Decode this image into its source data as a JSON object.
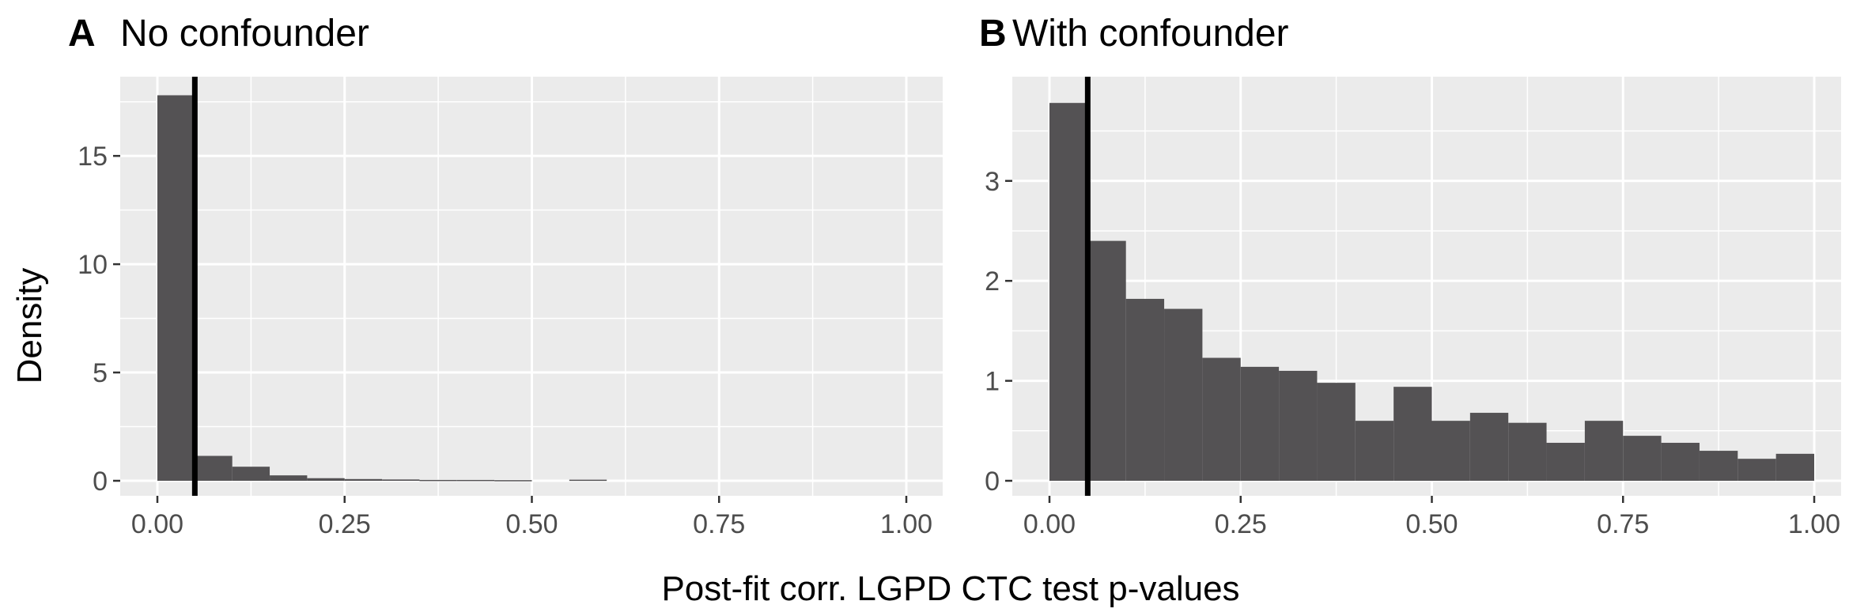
{
  "figure": {
    "ylabel": "Density",
    "xlabel": "Post-fit corr. LGPD CTC test p-values"
  },
  "chart_data": [
    {
      "type": "bar",
      "panel_letter": "A",
      "title": "No confounder",
      "xlim": [
        0,
        1
      ],
      "ylim": [
        0,
        18
      ],
      "x_ticks": [
        0,
        0.25,
        0.5,
        0.75,
        1
      ],
      "x_tick_labels": [
        "0.00",
        "0.25",
        "0.50",
        "0.75",
        "1.00"
      ],
      "y_ticks": [
        0,
        5,
        10,
        15
      ],
      "y_tick_labels": [
        "0",
        "5",
        "10",
        "15"
      ],
      "bin_width": 0.05,
      "bin_starts": [
        0,
        0.05,
        0.1,
        0.15,
        0.2,
        0.25,
        0.3,
        0.35,
        0.4,
        0.45,
        0.5,
        0.55,
        0.6,
        0.65,
        0.7,
        0.75,
        0.8,
        0.85,
        0.9,
        0.95
      ],
      "values": [
        17.8,
        1.15,
        0.65,
        0.25,
        0.12,
        0.08,
        0.06,
        0.04,
        0.04,
        0.03,
        0.0,
        0.05,
        0.0,
        0.0,
        0.0,
        0.0,
        0.0,
        0.0,
        0.0,
        0.0
      ],
      "vline_x": 0.05,
      "grid": true
    },
    {
      "type": "bar",
      "panel_letter": "B",
      "title": "With confounder",
      "xlim": [
        0,
        1
      ],
      "ylim": [
        0,
        3.9
      ],
      "x_ticks": [
        0,
        0.25,
        0.5,
        0.75,
        1
      ],
      "x_tick_labels": [
        "0.00",
        "0.25",
        "0.50",
        "0.75",
        "1.00"
      ],
      "y_ticks": [
        0,
        1,
        2,
        3
      ],
      "y_tick_labels": [
        "0",
        "1",
        "2",
        "3"
      ],
      "bin_width": 0.05,
      "bin_starts": [
        0,
        0.05,
        0.1,
        0.15,
        0.2,
        0.25,
        0.3,
        0.35,
        0.4,
        0.45,
        0.5,
        0.55,
        0.6,
        0.65,
        0.7,
        0.75,
        0.8,
        0.85,
        0.9,
        0.95
      ],
      "values": [
        3.78,
        2.4,
        1.82,
        1.72,
        1.23,
        1.14,
        1.1,
        0.98,
        0.6,
        0.94,
        0.6,
        0.68,
        0.58,
        0.38,
        0.6,
        0.45,
        0.38,
        0.3,
        0.22,
        0.27
      ],
      "vline_x": 0.05,
      "grid": true
    }
  ],
  "colors": {
    "panel_bg": "#ebebeb",
    "grid": "#ffffff",
    "bar": "#545254",
    "vline": "#000000",
    "tick_label": "#4d4d4d",
    "text": "#000000"
  }
}
